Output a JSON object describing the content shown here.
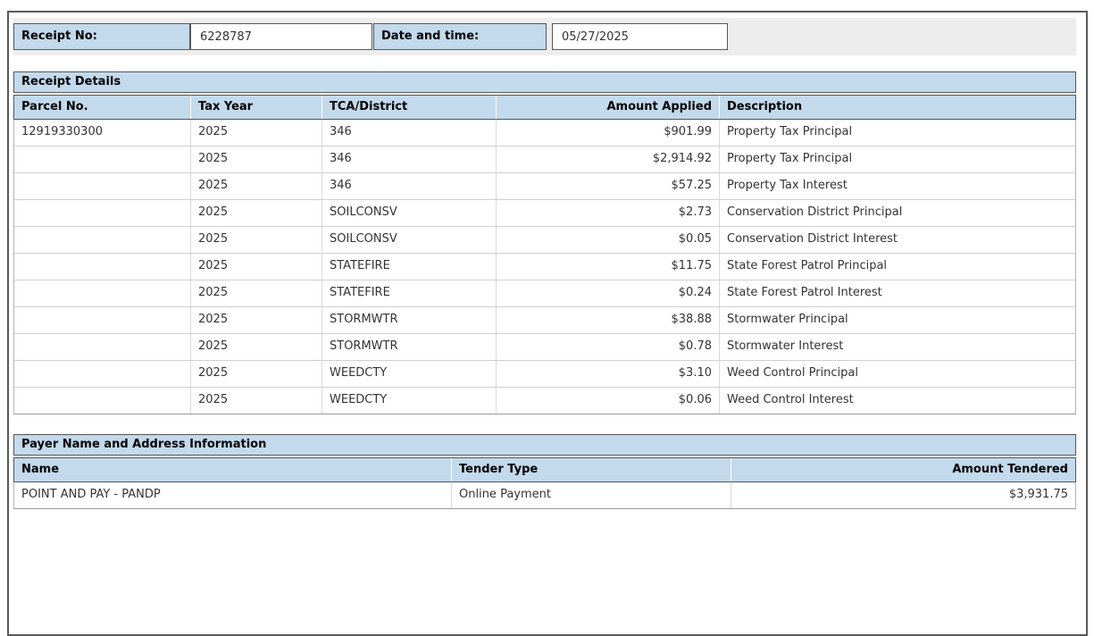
{
  "receipt_header": {
    "receipt_no_label": "Receipt No:",
    "receipt_no_value": "6228787",
    "date_label": "Date and time:",
    "date_value": "05/27/2025"
  },
  "receipt_details": {
    "section_title": "Receipt Details",
    "columns": [
      "Parcel No.",
      "Tax Year",
      "TCA/District",
      "Amount Applied",
      "Description"
    ],
    "rows": [
      [
        "12919330300",
        "2025",
        "346",
        "$901.99",
        "Property Tax Principal"
      ],
      [
        "",
        "2025",
        "346",
        "$2,914.92",
        "Property Tax Principal"
      ],
      [
        "",
        "2025",
        "346",
        "$57.25",
        "Property Tax Interest"
      ],
      [
        "",
        "2025",
        "SOILCONSV",
        "$2.73",
        "Conservation District Principal"
      ],
      [
        "",
        "2025",
        "SOILCONSV",
        "$0.05",
        "Conservation District Interest"
      ],
      [
        "",
        "2025",
        "STATEFIRE",
        "$11.75",
        "State Forest Patrol Principal"
      ],
      [
        "",
        "2025",
        "STATEFIRE",
        "$0.24",
        "State Forest Patrol Interest"
      ],
      [
        "",
        "2025",
        "STORMWTR",
        "$38.88",
        "Stormwater Principal"
      ],
      [
        "",
        "2025",
        "STORMWTR",
        "$0.78",
        "Stormwater Interest"
      ],
      [
        "",
        "2025",
        "WEEDCTY",
        "$3.10",
        "Weed Control Principal"
      ],
      [
        "",
        "2025",
        "WEEDCTY",
        "$0.06",
        "Weed Control Interest"
      ]
    ]
  },
  "payer_info": {
    "section_title": "Payer Name and Address Information",
    "columns": [
      "Name",
      "Tender Type",
      "Amount Tendered"
    ],
    "rows": [
      [
        "POINT AND PAY - PANDP",
        "Online Payment",
        "$3,931.75"
      ]
    ]
  },
  "colors": {
    "header_blue": "#c3d9ec",
    "filler_gray": "#ededed",
    "dark_border": "#565656",
    "row_border": "#d0d0d0",
    "data_text": "#333333"
  }
}
